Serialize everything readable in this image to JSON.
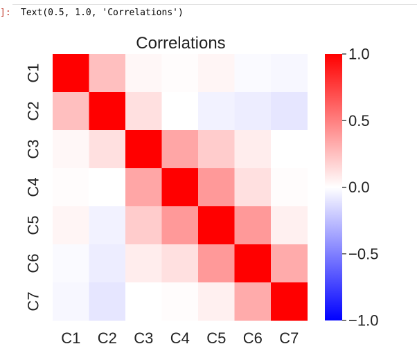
{
  "output_prompt": "]:",
  "output_repr": "Text(0.5, 1.0, 'Correlations')",
  "colors": {
    "negative": "#0000ff",
    "neutral": "#ffffff",
    "positive": "#ff0000",
    "text": "#222222"
  },
  "chart_data": {
    "type": "heatmap",
    "title": "Correlations",
    "xlabel": "",
    "ylabel": "",
    "rows": [
      "C1",
      "C2",
      "C3",
      "C4",
      "C5",
      "C6",
      "C7"
    ],
    "cols": [
      "C1",
      "C2",
      "C3",
      "C4",
      "C5",
      "C6",
      "C7"
    ],
    "values": [
      [
        1.0,
        0.25,
        0.03,
        0.01,
        0.04,
        -0.02,
        -0.03
      ],
      [
        0.25,
        1.0,
        0.12,
        0.0,
        -0.05,
        -0.07,
        -0.1
      ],
      [
        0.03,
        0.12,
        1.0,
        0.35,
        0.2,
        0.07,
        0.0
      ],
      [
        0.01,
        0.0,
        0.35,
        1.0,
        0.4,
        0.12,
        0.01
      ],
      [
        0.04,
        -0.05,
        0.2,
        0.4,
        1.0,
        0.4,
        0.06
      ],
      [
        -0.02,
        -0.07,
        0.07,
        0.12,
        0.4,
        1.0,
        0.33
      ],
      [
        -0.03,
        -0.1,
        0.0,
        0.01,
        0.06,
        0.33,
        1.0
      ]
    ],
    "colorbar": {
      "range": [
        -1.0,
        1.0
      ],
      "ticks": [
        1.0,
        0.5,
        0.0,
        -0.5,
        -1.0
      ],
      "tick_labels": [
        "1.0",
        "0.5",
        "0.0",
        "−0.5",
        "−1.0"
      ]
    },
    "colormap": "bwr"
  }
}
